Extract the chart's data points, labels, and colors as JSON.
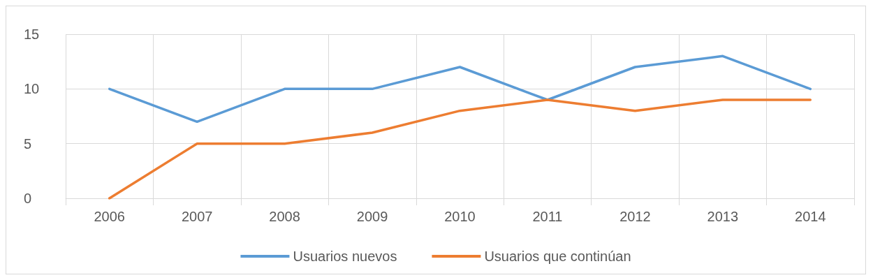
{
  "chart_data": {
    "type": "line",
    "categories": [
      "2006",
      "2007",
      "2008",
      "2009",
      "2010",
      "2011",
      "2012",
      "2013",
      "2014"
    ],
    "series": [
      {
        "name": "Usuarios nuevos",
        "color": "#5b9bd5",
        "values": [
          10,
          7,
          10,
          10,
          12,
          9,
          12,
          13,
          10
        ]
      },
      {
        "name": "Usuarios que continúan",
        "color": "#ed7d31",
        "values": [
          0,
          5,
          5,
          6,
          8,
          9,
          8,
          9,
          9
        ]
      }
    ],
    "ylim": [
      0,
      15
    ],
    "yticks": [
      0,
      5,
      10,
      15
    ],
    "grid": true,
    "legend": "bottom",
    "marker": "none",
    "line_style": "solid"
  }
}
